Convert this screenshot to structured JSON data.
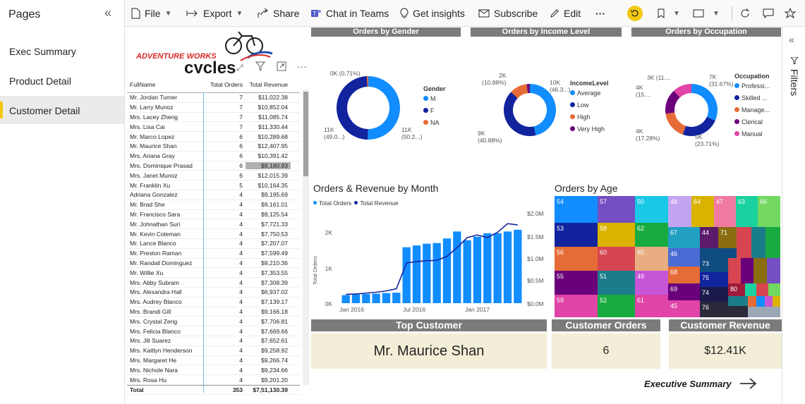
{
  "pages_pane": {
    "title": "Pages",
    "items": [
      "Exec Summary",
      "Product Detail",
      "Customer Detail"
    ],
    "active": "Customer Detail"
  },
  "toolbar": {
    "file": "File",
    "export": "Export",
    "share": "Share",
    "chat": "Chat in Teams",
    "insights": "Get insights",
    "subscribe": "Subscribe",
    "edit": "Edit",
    "more": "···"
  },
  "filters_pane": {
    "label": "Filters"
  },
  "logo": {
    "line1": "ADVENTURE WORKS",
    "line2": "cycles"
  },
  "table": {
    "headers": [
      "FullName",
      "Total Orders",
      "Total Revenue"
    ],
    "rows": [
      [
        "Mr. Jordan Turner",
        "7",
        "$11,022.38"
      ],
      [
        "Mr. Larry Munoz",
        "7",
        "$10,852.04"
      ],
      [
        "Mrs. Lacey Zheng",
        "7",
        "$11,085.74"
      ],
      [
        "Mrs. Lisa Cai",
        "7",
        "$11,330.44"
      ],
      [
        "Mr. Marco Lopez",
        "6",
        "$10,289.68"
      ],
      [
        "Mr. Maurice Shan",
        "6",
        "$12,407.95"
      ],
      [
        "Mrs. Ariana Gray",
        "6",
        "$10,391.42"
      ],
      [
        "Mrs. Dominique Prasad",
        "6",
        "$9,180.93"
      ],
      [
        "Mrs. Janet Munoz",
        "6",
        "$12,015.39"
      ],
      [
        "Mr. Franklin Xu",
        "5",
        "$10,164.35"
      ],
      [
        "Adriana Gonzalez",
        "4",
        "$9,195.69"
      ],
      [
        "Mr. Brad She",
        "4",
        "$9,161.01"
      ],
      [
        "Mr. Francisco Sara",
        "4",
        "$9,125.54"
      ],
      [
        "Mr. Johnathan Suri",
        "4",
        "$7,721.33"
      ],
      [
        "Mr. Kevin Coleman",
        "4",
        "$7,750.53"
      ],
      [
        "Mr. Lance Blanco",
        "4",
        "$7,207.07"
      ],
      [
        "Mr. Preston Raman",
        "4",
        "$7,599.49"
      ],
      [
        "Mr. Randall Dominguez",
        "4",
        "$9,210.36"
      ],
      [
        "Mr. Willie Xu",
        "4",
        "$7,353.55"
      ],
      [
        "Mrs. Abby Subram",
        "4",
        "$7,308.39"
      ],
      [
        "Mrs. Alexandra Hall",
        "4",
        "$6,937.02"
      ],
      [
        "Mrs. Audrey Blanco",
        "4",
        "$7,139.17"
      ],
      [
        "Mrs. Brandi Gill",
        "4",
        "$9,166.18"
      ],
      [
        "Mrs. Crystal Zeng",
        "4",
        "$7,706.81"
      ],
      [
        "Mrs. Felicia Blanco",
        "4",
        "$7,669.66"
      ],
      [
        "Mrs. Jill Suarez",
        "4",
        "$7,652.61"
      ],
      [
        "Mrs. Kaitlyn Henderson",
        "4",
        "$9,258.92"
      ],
      [
        "Mrs. Margaret He",
        "4",
        "$9,266.74"
      ],
      [
        "Mrs. Nichole Nara",
        "4",
        "$9,234.66"
      ],
      [
        "Mrs. Rosa Hu",
        "4",
        "$9,201.20"
      ]
    ],
    "total": [
      "Total",
      "353",
      "$7,51,130.39"
    ]
  },
  "donuts": {
    "gender": {
      "title": "Orders by Gender",
      "legend_title": "Gender",
      "legend": [
        "M",
        "F",
        "NA"
      ],
      "labels": {
        "top": "0K (0.71%)",
        "left1": "11K",
        "left2": "(49.0...)",
        "right1": "11K",
        "right2": "(50.2...)"
      }
    },
    "income": {
      "title": "Orders by Income Level",
      "legend_title": "IncomeLevel",
      "legend": [
        "Average",
        "Low",
        "High",
        "Very High"
      ],
      "labels": {
        "tl1": "2K",
        "tl2": "(10.88%)",
        "tr1": "10K",
        "tr2": "(46.3...)",
        "bl1": "9K",
        "bl2": "(40.88%)"
      }
    },
    "occupation": {
      "title": "Orders by Occupation",
      "legend_title": "Occupation",
      "legend": [
        "Professi...",
        "Skilled ...",
        "Manage...",
        "Clerical",
        "Manual"
      ],
      "labels": {
        "a": "3K (11....",
        "b1": "4K",
        "b2": "(15....",
        "c1": "7K",
        "c2": "(31.67%)",
        "d1": "4K",
        "d2": "(17.28%)",
        "e1": "5K",
        "e2": "(23.71%)"
      }
    }
  },
  "combo": {
    "title": "Orders & Revenue by Month",
    "legend": [
      "Total Orders",
      "Total Revenue"
    ],
    "ylabel": "Total Orders",
    "yticks_left": [
      "2K",
      "1K",
      "0K"
    ],
    "yticks_right": [
      "$2.0M",
      "$1.5M",
      "$1.0M",
      "$0.5M",
      "$0.0M"
    ],
    "xticks": [
      "Jan 2016",
      "Jul 2016",
      "Jan 2017"
    ]
  },
  "treemap": {
    "title": "Orders by Age"
  },
  "cards": {
    "top_customer": {
      "label": "Top Customer",
      "value": "Mr. Maurice Shan"
    },
    "customer_orders": {
      "label": "Customer Orders",
      "value": "6"
    },
    "customer_revenue": {
      "label": "Customer Revenue",
      "value": "$12.41K"
    }
  },
  "nav": {
    "label": "Executive Summary"
  },
  "colors": {
    "blue": "#118dff",
    "navy": "#12239e",
    "orange": "#e66c37",
    "purple": "#6b007b",
    "pink": "#e044a7",
    "header_gray": "#7b7b7b",
    "card_bg": "#f3eed7"
  },
  "chart_data": [
    {
      "type": "pie",
      "title": "Orders by Gender",
      "categories": [
        "M",
        "F",
        "NA"
      ],
      "values": [
        50.2,
        49.0,
        0.71
      ]
    },
    {
      "type": "pie",
      "title": "Orders by Income Level",
      "categories": [
        "Average",
        "Low",
        "High",
        "Very High"
      ],
      "values": [
        46.3,
        40.88,
        10.88,
        1.94
      ]
    },
    {
      "type": "pie",
      "title": "Orders by Occupation",
      "categories": [
        "Professional",
        "Skilled Manual",
        "Management",
        "Clerical",
        "Manual"
      ],
      "values": [
        31.67,
        23.71,
        17.28,
        15.5,
        11.8
      ]
    },
    {
      "type": "bar",
      "title": "Orders & Revenue by Month",
      "x": [
        "2016-01",
        "2016-02",
        "2016-03",
        "2016-04",
        "2016-05",
        "2016-06",
        "2016-07",
        "2016-08",
        "2016-09",
        "2016-10",
        "2016-11",
        "2016-12",
        "2017-01",
        "2017-02",
        "2017-03",
        "2017-04",
        "2017-05",
        "2017-06"
      ],
      "series": [
        {
          "name": "Total Orders",
          "values": [
            230,
            250,
            260,
            270,
            290,
            300,
            1600,
            1650,
            1700,
            1720,
            1850,
            2050,
            1800,
            1900,
            2000,
            2000,
            2050,
            2100
          ]
        },
        {
          "name": "Total Revenue",
          "values": [
            0.2,
            0.21,
            0.23,
            0.25,
            0.28,
            0.33,
            0.92,
            0.95,
            0.97,
            0.98,
            1.07,
            1.27,
            1.5,
            1.56,
            1.5,
            1.62,
            1.82,
            1.79
          ]
        }
      ],
      "ylim": [
        0,
        2500
      ],
      "y2lim": [
        0,
        2.0
      ]
    }
  ]
}
